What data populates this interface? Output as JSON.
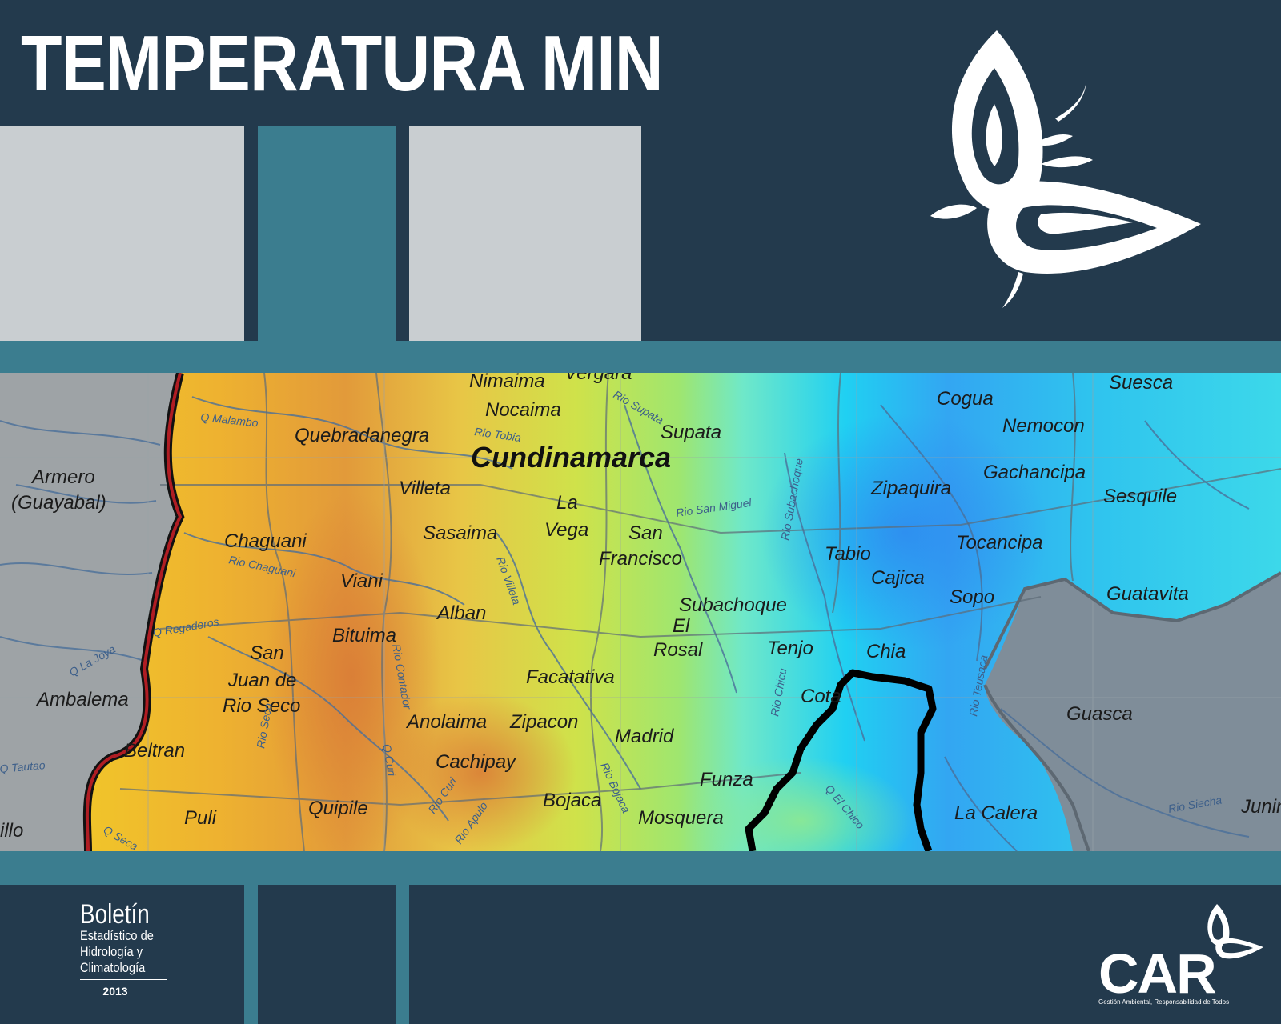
{
  "header": {
    "title": "TEMPERATURA MIN"
  },
  "colors": {
    "navy": "#233a4d",
    "teal": "#3b7d8f",
    "panel_gray": "#c9ced1",
    "warm": "#e6a03a",
    "cool": "#2ec7f0"
  },
  "map": {
    "department": "Cundinamarca",
    "towns": [
      "Nimaima",
      "Vergara",
      "Nocaima",
      "Supata",
      "Cogua",
      "Suesca",
      "Nemocon",
      "Quebradanegra",
      "Armero",
      "(Guayabal)",
      "Villeta",
      "La",
      "Vega",
      "Gachancipa",
      "Zipaquira",
      "Sesquile",
      "Chaguani",
      "Sasaima",
      "San",
      "Francisco",
      "Tabio",
      "Tocancipa",
      "Viani",
      "Cajica",
      "Sopo",
      "Guatavita",
      "Alban",
      "Subachoque",
      "El",
      "Rosal",
      "Bituima",
      "San",
      "Tenjo",
      "Chia",
      "Juan de",
      "Facatativa",
      "Ambalema",
      "Rio Seco",
      "Cota",
      "Anolaima",
      "Zipacon",
      "Guasca",
      "Madrid",
      "Beltran",
      "Cachipay",
      "Funza",
      "Bojaca",
      "Quipile",
      "La Calera",
      "Puli",
      "Mosquera",
      "Junin",
      "illo"
    ],
    "rivers": [
      "Q Malambo",
      "Rio Tobia",
      "Rio Supata",
      "Rio San Miguel",
      "Rio Subachoque",
      "Rio Chaguani",
      "Rio Villeta",
      "Q Regaderos",
      "Q La Joya",
      "Rio Contador",
      "Rio Chicu",
      "Rio Teusaca",
      "Rio Seco",
      "Q Curi",
      "Rio Curi",
      "Rio Bojaca",
      "Q El Chico",
      "Rio Apulo",
      "Q Seca",
      "Q Tautao",
      "Rio Siecha"
    ]
  },
  "footer": {
    "boletin_title": "Boletín",
    "boletin_line1": "Estadístico de",
    "boletin_line2": "Hidrología y",
    "boletin_line3": "Climatología",
    "year": "2013",
    "brand": "CAR",
    "tagline": "Gestión Ambiental, Responsabilidad de Todos"
  }
}
